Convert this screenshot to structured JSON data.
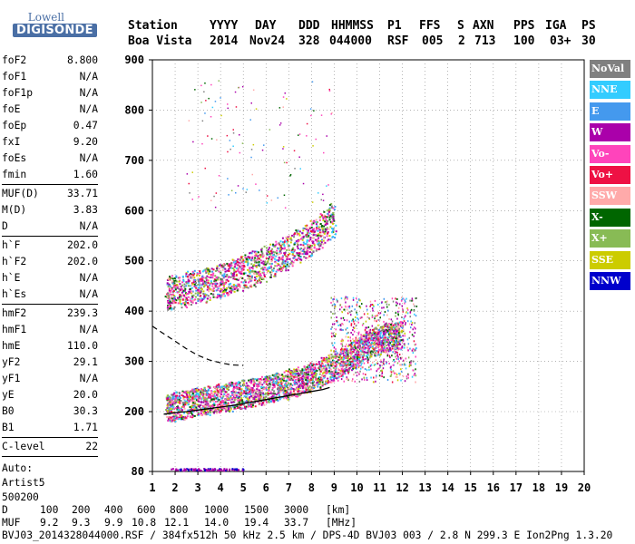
{
  "logo": {
    "line1": "Lowell",
    "line2": "DIGISONDE"
  },
  "header": {
    "labels": [
      "Station",
      "YYYY",
      "DAY",
      "DDD",
      "HHMMSS",
      "P1",
      "FFS",
      "S",
      "AXN",
      "PPS",
      "IGA",
      "PS"
    ],
    "values": [
      "Boa Vista",
      "2014",
      "Nov24",
      "328",
      "044000",
      "RSF",
      "005",
      "2",
      "713",
      "100",
      "03+",
      "30"
    ]
  },
  "params": [
    [
      {
        "name": "foF2",
        "value": "8.800"
      },
      {
        "name": "foF1",
        "value": "N/A"
      },
      {
        "name": "foF1p",
        "value": "N/A"
      },
      {
        "name": "foE",
        "value": "N/A"
      },
      {
        "name": "foEp",
        "value": "0.47"
      },
      {
        "name": "fxI",
        "value": "9.20"
      },
      {
        "name": "foEs",
        "value": "N/A"
      },
      {
        "name": "fmin",
        "value": "1.60"
      }
    ],
    [
      {
        "name": "MUF(D)",
        "value": "33.71"
      },
      {
        "name": "M(D)",
        "value": "3.83"
      },
      {
        "name": "D",
        "value": "N/A"
      }
    ],
    [
      {
        "name": "h`F",
        "value": "202.0"
      },
      {
        "name": "h`F2",
        "value": "202.0"
      },
      {
        "name": "h`E",
        "value": "N/A"
      },
      {
        "name": "h`Es",
        "value": "N/A"
      }
    ],
    [
      {
        "name": "hmF2",
        "value": "239.3"
      },
      {
        "name": "hmF1",
        "value": "N/A"
      },
      {
        "name": "hmE",
        "value": "110.0"
      },
      {
        "name": "yF2",
        "value": "29.1"
      },
      {
        "name": "yF1",
        "value": "N/A"
      },
      {
        "name": "yE",
        "value": "20.0"
      },
      {
        "name": "B0",
        "value": "30.3"
      },
      {
        "name": "B1",
        "value": "1.71"
      }
    ],
    [
      {
        "name": "C-level",
        "value": "22"
      }
    ]
  ],
  "autoscale": {
    "label": "Auto:",
    "program": "Artist5",
    "version": "500200"
  },
  "footer": {
    "d_label": "D",
    "d_values": [
      "100",
      "200",
      "400",
      "600",
      "800",
      "1000",
      "1500",
      "3000"
    ],
    "d_unit": "[km]",
    "muf_label": "MUF",
    "muf_values": [
      "9.2",
      "9.3",
      "9.9",
      "10.8",
      "12.1",
      "14.0",
      "19.4",
      "33.7"
    ],
    "muf_unit": "[MHz]",
    "file_line": "BVJ03_2014328044000.RSF / 384fx512h 50 kHz 2.5 km / DPS-4D BVJ03 003 / 2.8 N 299.3 E Ion2Png 1.3.20"
  },
  "legend": [
    {
      "label": "NoVal",
      "color": "#808080"
    },
    {
      "label": "NNE",
      "color": "#33ccff"
    },
    {
      "label": "E",
      "color": "#4499ee"
    },
    {
      "label": "W",
      "color": "#aa00aa"
    },
    {
      "label": "Vo-",
      "color": "#ff44bb"
    },
    {
      "label": "Vo+",
      "color": "#ee1144"
    },
    {
      "label": "SSW",
      "color": "#ffaaaa"
    },
    {
      "label": "X-",
      "color": "#006600"
    },
    {
      "label": "X+",
      "color": "#88bb55"
    },
    {
      "label": "SSE",
      "color": "#cccc00"
    },
    {
      "label": "NNW",
      "color": "#0000cc"
    }
  ],
  "chart_data": {
    "type": "scatter",
    "xlim": [
      1,
      20
    ],
    "ylim": [
      80,
      900
    ],
    "x_ticks": [
      "1",
      "2",
      "3",
      "4",
      "5",
      "6",
      "7",
      "8",
      "9",
      "10",
      "11",
      "12",
      "13",
      "14",
      "15",
      "16",
      "17",
      "18",
      "19",
      "20"
    ],
    "y_ticks": [
      "80",
      "200",
      "300",
      "400",
      "500",
      "600",
      "700",
      "800",
      "900"
    ],
    "grid": true,
    "series": [
      {
        "name": "O-trace F2",
        "x": [
          1.6,
          2,
          2.5,
          3,
          3.5,
          4,
          4.5,
          5,
          5.5,
          6,
          6.5,
          7,
          7.5,
          8,
          8.5,
          9,
          9.5,
          10,
          10.5,
          11,
          11.5,
          12
        ],
        "y": [
          208,
          212,
          216,
          220,
          224,
          228,
          232,
          236,
          240,
          245,
          250,
          256,
          262,
          270,
          280,
          292,
          305,
          320,
          335,
          345,
          350,
          355
        ]
      },
      {
        "name": "Multihop 2F",
        "x": [
          1.6,
          2,
          2.5,
          3,
          3.5,
          4,
          4.5,
          5,
          5.5,
          6,
          6.5,
          7,
          7.5,
          8,
          8.5,
          9
        ],
        "y": [
          435,
          440,
          445,
          450,
          455,
          462,
          470,
          478,
          487,
          497,
          508,
          520,
          533,
          548,
          565,
          585
        ]
      },
      {
        "name": "Profile",
        "x": [
          1.5,
          2,
          2.5,
          3,
          3.5,
          4,
          4.5,
          5,
          5.5,
          6,
          6.5,
          7,
          7.5,
          8,
          8.5,
          8.8
        ],
        "y": [
          195,
          198,
          200,
          203,
          206,
          209,
          212,
          216,
          220,
          224,
          228,
          232,
          236,
          240,
          244,
          248
        ]
      },
      {
        "name": "Profile dashed",
        "x": [
          1,
          1.5,
          2,
          2.5,
          3,
          3.5,
          4,
          4.5,
          5
        ],
        "y": [
          370,
          355,
          340,
          325,
          312,
          303,
          297,
          293,
          292
        ]
      }
    ]
  }
}
